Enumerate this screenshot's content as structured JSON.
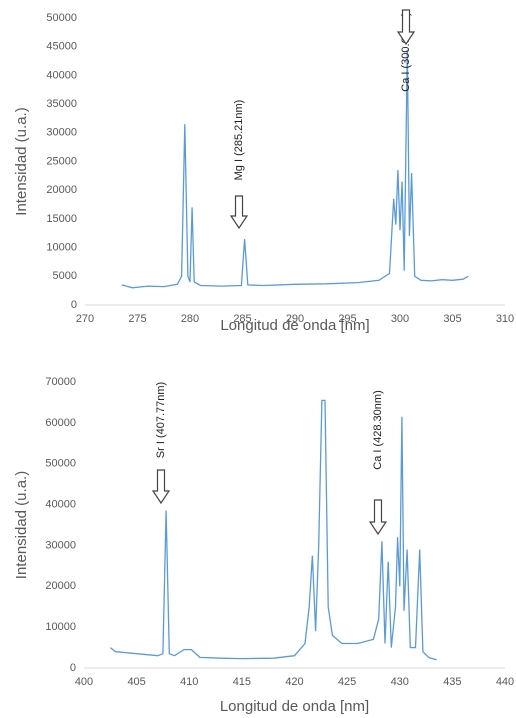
{
  "chart_data": [
    {
      "type": "line",
      "x": [
        273.5,
        274.5,
        276,
        277.5,
        278.8,
        279.2,
        279.5,
        279.8,
        280.0,
        280.2,
        280.4,
        281,
        283,
        284.9,
        285.2,
        285.5,
        287,
        290,
        293,
        296,
        298,
        299.0,
        299.4,
        299.6,
        299.8,
        300.0,
        300.2,
        300.4,
        300.7,
        300.9,
        301.1,
        301.4,
        302,
        303,
        304,
        305,
        306,
        306.5
      ],
      "values": [
        3500,
        3000,
        3300,
        3200,
        3600,
        5000,
        31500,
        5000,
        4000,
        17000,
        4000,
        3400,
        3300,
        3400,
        11500,
        3500,
        3400,
        3600,
        3700,
        3900,
        4300,
        5500,
        18500,
        14000,
        23500,
        13000,
        21500,
        6000,
        44500,
        12000,
        23000,
        5000,
        4300,
        4200,
        4400,
        4300,
        4500,
        5000
      ],
      "color": "#5b9bd5",
      "xlim": [
        270,
        310
      ],
      "xticks": [
        270,
        275,
        280,
        285,
        290,
        295,
        300,
        305,
        310
      ],
      "ylim": [
        0,
        50000
      ],
      "yticks": [
        0,
        5000,
        10000,
        15000,
        20000,
        25000,
        30000,
        35000,
        40000,
        45000,
        50000
      ],
      "x_label": "Longitud de onda [nm]",
      "y_label": "Intensidad (u.a.)",
      "annotations": [
        "Mg I (285.21nm)",
        "Ca I (300.69nm)"
      ]
    },
    {
      "type": "line",
      "x": [
        402.5,
        403,
        405,
        407,
        407.5,
        407.8,
        408.1,
        408.6,
        409.5,
        410.2,
        411,
        413,
        415,
        418,
        420,
        421,
        421.4,
        421.7,
        422.0,
        422.3,
        422.6,
        422.9,
        423.2,
        423.6,
        424.5,
        426,
        427.5,
        428.0,
        428.3,
        428.6,
        428.9,
        429.2,
        429.6,
        429.8,
        430.0,
        430.2,
        430.4,
        430.7,
        431.0,
        431.5,
        431.9,
        432.2,
        432.8,
        433.5
      ],
      "values": [
        5000,
        4000,
        3500,
        3000,
        3500,
        38500,
        3500,
        3000,
        4500,
        4500,
        2600,
        2400,
        2300,
        2400,
        3000,
        6000,
        15000,
        27500,
        9000,
        30000,
        65500,
        65500,
        15000,
        8000,
        6000,
        6000,
        7000,
        12000,
        31000,
        6000,
        26000,
        5000,
        15000,
        32000,
        20000,
        61500,
        14000,
        29000,
        5000,
        5000,
        29000,
        4000,
        2500,
        2000
      ],
      "color": "#5b9bd5",
      "xlim": [
        400,
        440
      ],
      "xticks": [
        400,
        405,
        410,
        415,
        420,
        425,
        430,
        435,
        440
      ],
      "ylim": [
        0,
        70000
      ],
      "yticks": [
        0,
        10000,
        20000,
        30000,
        40000,
        50000,
        60000,
        70000
      ],
      "x_label": "Longitud de onda [nm]",
      "y_label": "Intensidad (u.a.)",
      "annotations": [
        "Sr I (407.77nm)",
        "Ca I (428.30nm)"
      ]
    }
  ]
}
